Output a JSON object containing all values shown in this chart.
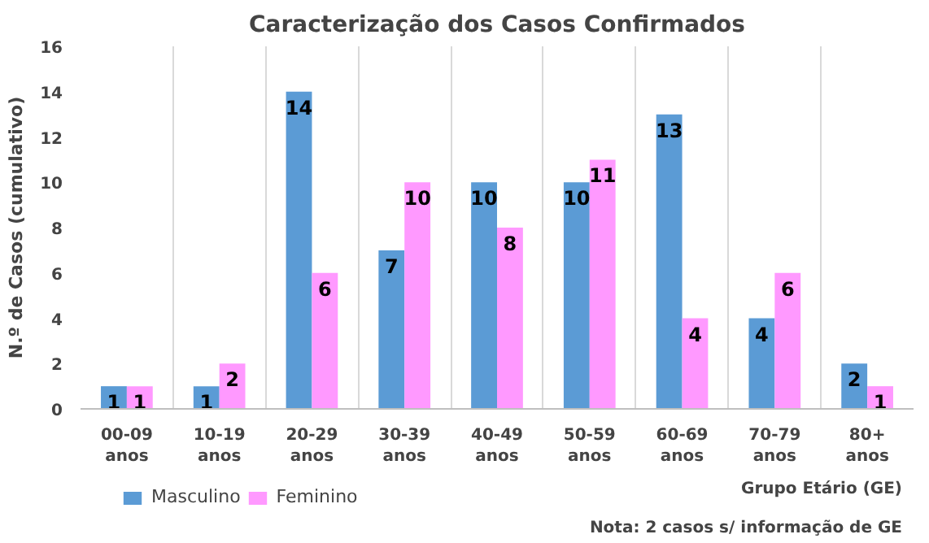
{
  "chart_data": {
    "type": "bar",
    "title": "Caracterização dos Casos Confirmados",
    "xlabel": "Grupo Etário (GE)",
    "ylabel": "N.º de Casos (cumulativo)",
    "categories": [
      "00-09 anos",
      "10-19 anos",
      "20-29 anos",
      "30-39 anos",
      "40-49 anos",
      "50-59 anos",
      "60-69 anos",
      "70-79 anos",
      "80+ anos"
    ],
    "series": [
      {
        "name": "Masculino",
        "color": "#5b9bd5",
        "values": [
          1,
          1,
          14,
          7,
          10,
          10,
          13,
          4,
          2
        ]
      },
      {
        "name": "Feminino",
        "color": "#ff99ff",
        "values": [
          1,
          2,
          6,
          10,
          8,
          11,
          4,
          6,
          1
        ]
      }
    ],
    "ylim": [
      0,
      16
    ],
    "yticks": [
      0,
      2,
      4,
      6,
      8,
      10,
      12,
      14,
      16
    ],
    "grid": "x",
    "legend": "bottom left",
    "data_labels": true,
    "annotations": [
      "Nota: 2 casos s/ informação de GE"
    ]
  }
}
